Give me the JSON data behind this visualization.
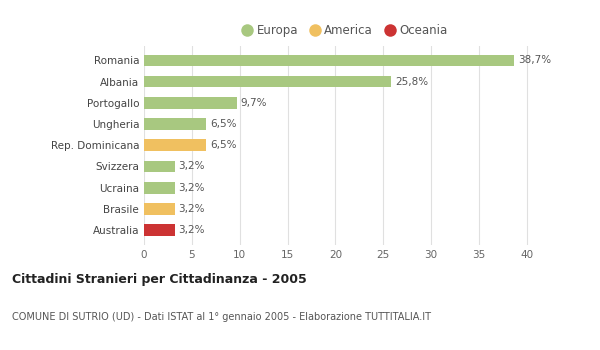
{
  "categories": [
    "Australia",
    "Brasile",
    "Ucraina",
    "Svizzera",
    "Rep. Dominicana",
    "Ungheria",
    "Portogallo",
    "Albania",
    "Romania"
  ],
  "values": [
    3.2,
    3.2,
    3.2,
    3.2,
    6.5,
    6.5,
    9.7,
    25.8,
    38.7
  ],
  "colors": [
    "#cc3333",
    "#f0c060",
    "#a8c880",
    "#a8c880",
    "#f0c060",
    "#a8c880",
    "#a8c880",
    "#a8c880",
    "#a8c880"
  ],
  "labels": [
    "3,2%",
    "3,2%",
    "3,2%",
    "3,2%",
    "6,5%",
    "6,5%",
    "9,7%",
    "25,8%",
    "38,7%"
  ],
  "legend": [
    {
      "label": "Europa",
      "color": "#a8c880"
    },
    {
      "label": "America",
      "color": "#f0c060"
    },
    {
      "label": "Oceania",
      "color": "#cc3333"
    }
  ],
  "xlim": [
    0,
    42
  ],
  "xticks": [
    0,
    5,
    10,
    15,
    20,
    25,
    30,
    35,
    40
  ],
  "title": "Cittadini Stranieri per Cittadinanza - 2005",
  "subtitle": "COMUNE DI SUTRIO (UD) - Dati ISTAT al 1° gennaio 2005 - Elaborazione TUTTITALIA.IT",
  "background_color": "#ffffff",
  "grid_color": "#e0e0e0",
  "bar_height": 0.55
}
